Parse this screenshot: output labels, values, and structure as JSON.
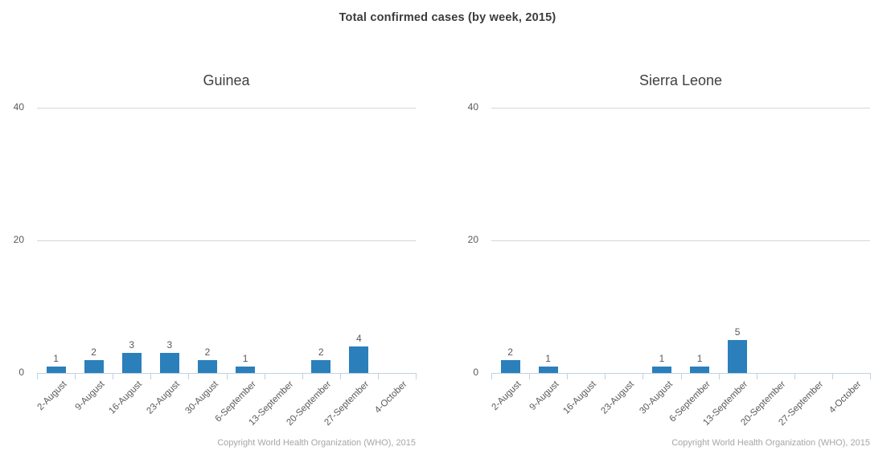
{
  "title": "Total confirmed cases (by week, 2015)",
  "copyright": "Copyright World Health Organization (WHO), 2015",
  "colors": {
    "bar": "#2b7fbb",
    "gridline": "#d7d7d7",
    "axis": "#bfd2e2",
    "main_title_text": "#3b3b3b",
    "chart_title_text": "#404040",
    "axis_label_text": "#595959",
    "value_label_text": "#595959",
    "copyright_text": "#a6a6a6",
    "background": "#ffffff"
  },
  "chart_data": [
    {
      "type": "bar",
      "title": "Guinea",
      "categories": [
        "2-August",
        "9-August",
        "16-August",
        "23-August",
        "30-August",
        "6-September",
        "13-September",
        "20-September",
        "27-September",
        "4-October"
      ],
      "values": [
        1,
        2,
        3,
        3,
        2,
        1,
        0,
        2,
        4,
        0
      ],
      "xlabel": "",
      "ylabel": "",
      "ylim": [
        0,
        40
      ],
      "yticks": [
        0,
        20,
        40
      ],
      "grid": "horizontal",
      "legend_position": "none",
      "value_labels_shown": true,
      "zero_value_bars_hidden": true
    },
    {
      "type": "bar",
      "title": "Sierra Leone",
      "categories": [
        "2-August",
        "9-August",
        "16-August",
        "23-August",
        "30-August",
        "6-September",
        "13-September",
        "20-September",
        "27-September",
        "4-October"
      ],
      "values": [
        2,
        1,
        0,
        0,
        1,
        1,
        5,
        0,
        0,
        0
      ],
      "xlabel": "",
      "ylabel": "",
      "ylim": [
        0,
        40
      ],
      "yticks": [
        0,
        20,
        40
      ],
      "grid": "horizontal",
      "legend_position": "none",
      "value_labels_shown": true,
      "zero_value_bars_hidden": true
    }
  ]
}
